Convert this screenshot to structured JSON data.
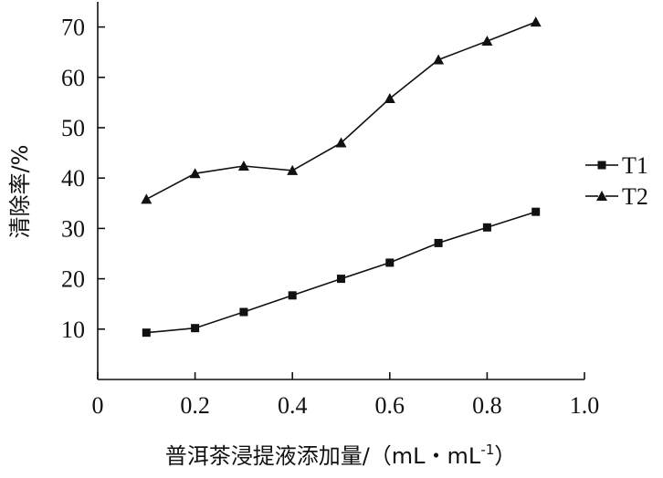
{
  "chart_data": {
    "type": "line",
    "xlabel": "普洱茶浸提液添加量/（mL・mL",
    "xlabel_sup": "-1",
    "xlabel_end": "）",
    "ylabel": "清除率/%",
    "xlim": [
      0,
      1.0
    ],
    "ylim": [
      0,
      75
    ],
    "xticks": [
      0,
      0.2,
      0.4,
      0.6,
      0.8,
      1.0
    ],
    "xtick_labels": [
      "0",
      "0.2",
      "0.4",
      "0.6",
      "0.8",
      "1.0"
    ],
    "yticks": [
      10,
      20,
      30,
      40,
      50,
      60,
      70
    ],
    "ytick_labels": [
      "10",
      "20",
      "30",
      "40",
      "50",
      "60",
      "70"
    ],
    "x": [
      0.1,
      0.2,
      0.3,
      0.4,
      0.5,
      0.6,
      0.7,
      0.8,
      0.9
    ],
    "series": [
      {
        "name": "T1",
        "marker": "square",
        "values": [
          9.3,
          10.2,
          13.4,
          16.7,
          20.0,
          23.2,
          27.1,
          30.2,
          33.3
        ]
      },
      {
        "name": "T2",
        "marker": "triangle",
        "values": [
          35.8,
          40.9,
          42.4,
          41.5,
          47.0,
          55.8,
          63.5,
          67.2,
          71.0
        ]
      }
    ],
    "grid": false,
    "legend_position": "right"
  }
}
